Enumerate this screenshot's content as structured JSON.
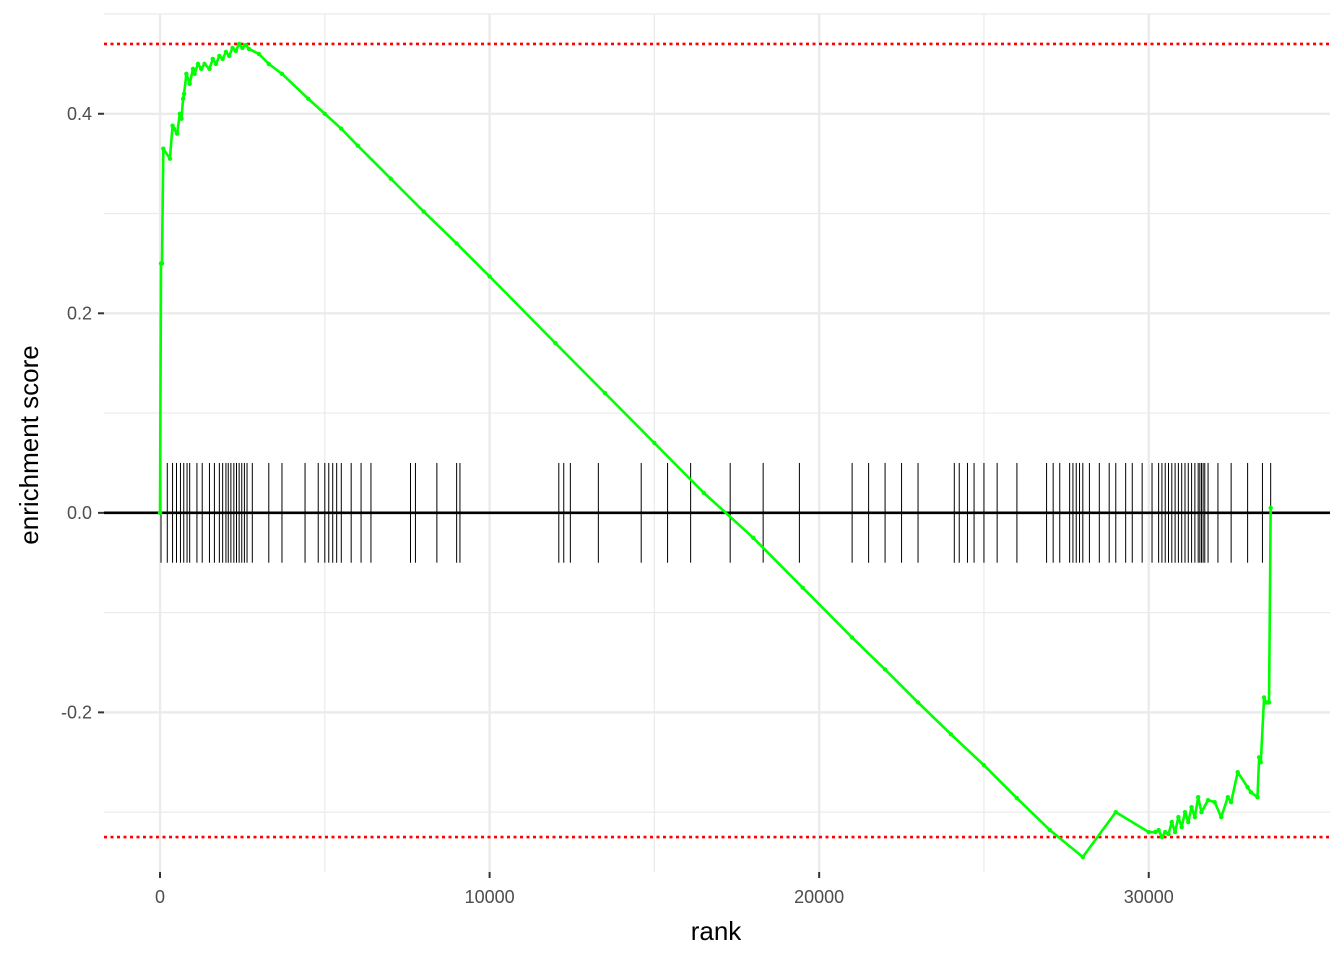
{
  "chart_data": {
    "type": "line",
    "title": "",
    "xlabel": "rank",
    "ylabel": "enrichment score",
    "xlim": [
      -1700,
      35500
    ],
    "ylim": [
      -0.36,
      0.5
    ],
    "x_ticks": [
      0,
      10000,
      20000,
      30000
    ],
    "x_tick_labels": [
      "0",
      "10000",
      "20000",
      "30000"
    ],
    "y_ticks": [
      -0.2,
      0.0,
      0.2,
      0.4
    ],
    "y_tick_labels": [
      "-0.2",
      "0.0",
      "0.2",
      "0.4"
    ],
    "grid": true,
    "legend": "none",
    "colors": {
      "curve": "#00ff00",
      "threshold": "#ff0000",
      "zero_line": "#000000",
      "ticks": "#000000",
      "grid": "#ebebeb"
    },
    "thresholds": [
      0.47,
      -0.325
    ],
    "rug_halfheight": 0.05,
    "series": [
      {
        "x": [
          0,
          30,
          60,
          100,
          300,
          380,
          420,
          520,
          600,
          650,
          700,
          730,
          800,
          900,
          1000,
          1050,
          1150,
          1250,
          1350,
          1500,
          1600,
          1700,
          1800,
          1900,
          2000,
          2100,
          2200,
          2300,
          2400,
          2500,
          2600,
          2700,
          3000,
          3300,
          3700,
          4500,
          5000,
          5500,
          6000,
          7000,
          8000,
          9000,
          10000,
          12000,
          13500,
          15000,
          16500,
          18000,
          19500,
          21000,
          22000,
          23000,
          24000,
          25000,
          26000,
          27000,
          28000,
          29000,
          30000,
          30200,
          30300,
          30400,
          30500,
          30600,
          30700,
          30800,
          30900,
          31000,
          31100,
          31200,
          31300,
          31400,
          31500,
          31600,
          31800,
          32000,
          32200,
          32400,
          32500,
          32700,
          33000,
          33100,
          33300,
          33350,
          33400,
          33500,
          33550,
          33600,
          33650,
          33700
        ],
        "y": [
          0.0,
          0.25,
          0.25,
          0.365,
          0.355,
          0.388,
          0.385,
          0.38,
          0.4,
          0.395,
          0.415,
          0.42,
          0.44,
          0.43,
          0.445,
          0.44,
          0.45,
          0.445,
          0.45,
          0.445,
          0.455,
          0.45,
          0.458,
          0.455,
          0.462,
          0.458,
          0.466,
          0.463,
          0.47,
          0.466,
          0.469,
          0.465,
          0.46,
          0.45,
          0.44,
          0.415,
          0.4,
          0.385,
          0.368,
          0.335,
          0.302,
          0.27,
          0.237,
          0.17,
          0.12,
          0.07,
          0.02,
          -0.025,
          -0.075,
          -0.125,
          -0.157,
          -0.19,
          -0.222,
          -0.253,
          -0.286,
          -0.318,
          -0.345,
          -0.3,
          -0.32,
          -0.32,
          -0.318,
          -0.325,
          -0.32,
          -0.322,
          -0.31,
          -0.32,
          -0.305,
          -0.315,
          -0.3,
          -0.31,
          -0.295,
          -0.305,
          -0.285,
          -0.3,
          -0.288,
          -0.29,
          -0.305,
          -0.285,
          -0.29,
          -0.26,
          -0.275,
          -0.28,
          -0.285,
          -0.245,
          -0.25,
          -0.185,
          -0.19,
          -0.19,
          -0.19,
          0.005
        ]
      }
    ],
    "rug_x": [
      30,
      220,
      380,
      500,
      620,
      720,
      820,
      900,
      1120,
      1280,
      1500,
      1650,
      1800,
      1900,
      2000,
      2070,
      2150,
      2240,
      2320,
      2400,
      2480,
      2560,
      2640,
      2800,
      3300,
      3700,
      4400,
      4800,
      5000,
      5120,
      5240,
      5360,
      5500,
      5800,
      6100,
      6400,
      7600,
      7750,
      8400,
      9000,
      9100,
      12100,
      12250,
      12450,
      13300,
      14600,
      15400,
      16100,
      17300,
      18300,
      19400,
      21000,
      21500,
      22000,
      22500,
      23000,
      24100,
      24250,
      24500,
      24700,
      25000,
      25400,
      26000,
      26900,
      27100,
      27300,
      27600,
      27700,
      27800,
      27900,
      28000,
      28200,
      28500,
      28800,
      29000,
      29300,
      29500,
      29800,
      30100,
      30300,
      30400,
      30500,
      30600,
      30700,
      30800,
      30900,
      31000,
      31100,
      31200,
      31300,
      31400,
      31500,
      31550,
      31600,
      31650,
      31700,
      31800,
      32100,
      32500,
      33000,
      33450,
      33700
    ]
  }
}
